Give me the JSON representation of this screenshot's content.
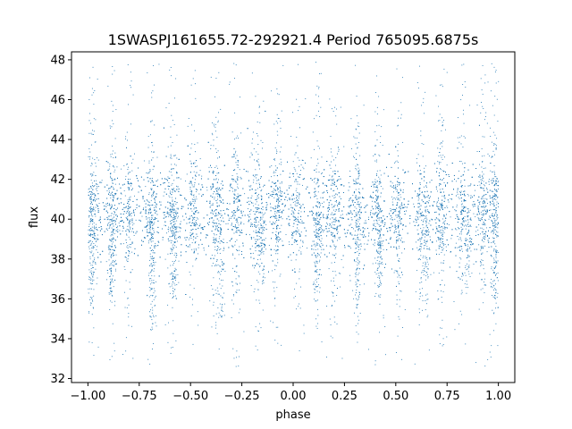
{
  "chart_data": {
    "type": "scatter",
    "title": "1SWASPJ161655.72-292921.4 Period 765095.6875s",
    "xlabel": "phase",
    "ylabel": "flux",
    "xlim": [
      -1.08,
      1.08
    ],
    "ylim": [
      31.8,
      48.4
    ],
    "x_ticks": [
      -1.0,
      -0.75,
      -0.5,
      -0.25,
      0.0,
      0.25,
      0.5,
      0.75,
      1.0
    ],
    "x_tick_labels": [
      "−1.00",
      "−0.75",
      "−0.50",
      "−0.25",
      "0.00",
      "0.25",
      "0.50",
      "0.75",
      "1.00"
    ],
    "y_ticks": [
      32,
      34,
      36,
      38,
      40,
      42,
      44,
      46,
      48
    ],
    "y_tick_labels": [
      "32",
      "34",
      "36",
      "38",
      "40",
      "42",
      "44",
      "46",
      "48"
    ],
    "grid": false,
    "legend": "none",
    "point_color": "#1f77b4",
    "baseline_flux": 40.3,
    "typical_scatter": 1.2,
    "clump_phases": [
      -0.98,
      -0.88,
      -0.8,
      -0.69,
      -0.59,
      -0.49,
      -0.38,
      -0.28,
      -0.18,
      -0.08,
      0.02,
      0.12,
      0.2,
      0.31,
      0.41,
      0.51,
      0.62,
      0.72,
      0.82,
      0.92,
      0.98
    ],
    "low_flux_dips": [
      {
        "phase": -0.69,
        "flux": 34.5
      },
      {
        "phase": -0.89,
        "flux": 36.2
      },
      {
        "phase": -0.58,
        "flux": 36.2
      },
      {
        "phase": 0.31,
        "flux": 34.5
      },
      {
        "phase": 0.11,
        "flux": 36.2
      },
      {
        "phase": 0.42,
        "flux": 36.2
      },
      {
        "phase": 0.85,
        "flux": 36.8
      },
      {
        "phase": -0.15,
        "flux": 36.8
      },
      {
        "phase": -0.35,
        "flux": 35.2
      },
      {
        "phase": 0.65,
        "flux": 35.2
      },
      {
        "phase": 0.98,
        "flux": 35.5
      },
      {
        "phase": -0.98,
        "flux": 35.5
      }
    ]
  }
}
